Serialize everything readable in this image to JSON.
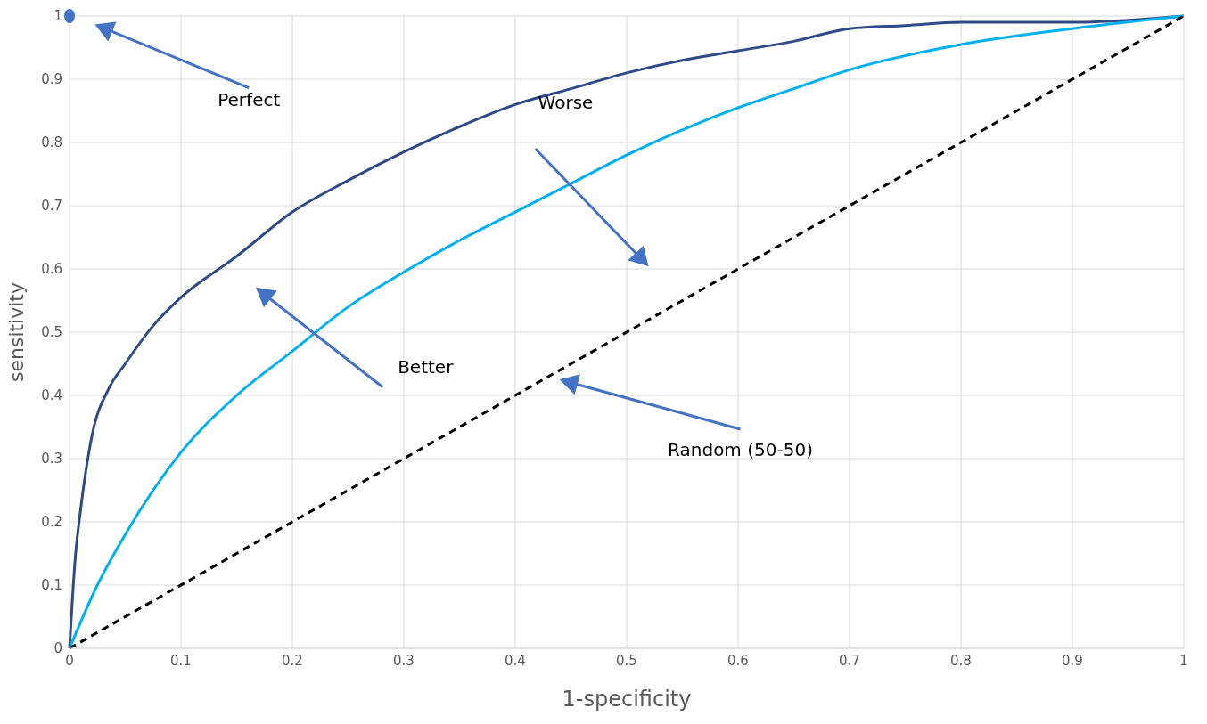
{
  "chart_data": {
    "type": "line",
    "xlabel": "1-specificity",
    "ylabel": "sensitivity",
    "xlim": [
      0,
      1
    ],
    "ylim": [
      0,
      1
    ],
    "xticks": [
      0,
      0.1,
      0.2,
      0.3,
      0.4,
      0.5,
      0.6,
      0.7,
      0.8,
      0.9,
      1
    ],
    "yticks": [
      0,
      0.1,
      0.2,
      0.3,
      0.4,
      0.5,
      0.6,
      0.7,
      0.8,
      0.9,
      1
    ],
    "grid": true,
    "series": [
      {
        "color": "#2e4a87",
        "x": [
          0,
          0.005,
          0.01,
          0.02,
          0.035,
          0.05,
          0.075,
          0.1,
          0.15,
          0.2,
          0.25,
          0.3,
          0.35,
          0.4,
          0.45,
          0.5,
          0.55,
          0.6,
          0.65,
          0.7,
          0.75,
          0.8,
          0.9,
          1
        ],
        "values": [
          0,
          0.14,
          0.22,
          0.335,
          0.41,
          0.45,
          0.51,
          0.555,
          0.62,
          0.69,
          0.74,
          0.785,
          0.825,
          0.86,
          0.885,
          0.91,
          0.93,
          0.945,
          0.96,
          0.98,
          0.985,
          0.99,
          0.99,
          1
        ]
      },
      {
        "color": "#00b0f0",
        "x": [
          0,
          0.025,
          0.05,
          0.075,
          0.1,
          0.15,
          0.2,
          0.25,
          0.3,
          0.35,
          0.4,
          0.45,
          0.5,
          0.55,
          0.6,
          0.65,
          0.7,
          0.8,
          0.9,
          1
        ],
        "values": [
          0,
          0.1,
          0.18,
          0.25,
          0.31,
          0.4,
          0.47,
          0.54,
          0.595,
          0.645,
          0.69,
          0.735,
          0.78,
          0.82,
          0.855,
          0.885,
          0.915,
          0.955,
          0.98,
          1
        ]
      },
      {
        "color": "#000000",
        "line_style": "dashed",
        "x": [
          0,
          1
        ],
        "values": [
          0,
          1
        ]
      },
      {
        "type": "scatter",
        "color": "#4472c4",
        "x": [
          0
        ],
        "values": [
          1
        ]
      }
    ],
    "annotations": [
      "Perfect",
      "Better",
      "Worse",
      "Random (50-50)"
    ]
  }
}
